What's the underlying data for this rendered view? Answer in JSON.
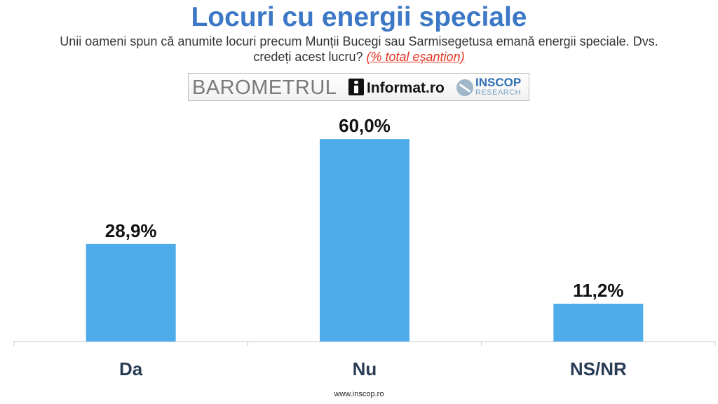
{
  "header": {
    "title": "Locuri cu energii speciale",
    "subtitle": "Unii oameni spun că anumite locuri precum Munții Bucegi sau Sarmisegetusa emană energii speciale. Dvs. credeți acest lucru?",
    "subtitle_note": "(% total eșantion)"
  },
  "banner": {
    "barometru": "BAROMETRUL",
    "informat": "Informat.ro",
    "inscop": "INSCOP",
    "research": "RESEARCH"
  },
  "chart_data": {
    "type": "bar",
    "categories": [
      "Da",
      "Nu",
      "NS/NR"
    ],
    "values": [
      28.9,
      60.0,
      11.2
    ],
    "data_labels": [
      "28,9%",
      "60,0%",
      "11,2%"
    ],
    "ylim": [
      0,
      70
    ],
    "grid": false,
    "bar_color": "#4facea"
  },
  "footer": {
    "url": "www.inscop.ro"
  },
  "colors": {
    "title": "#3c78c6",
    "note": "#e63323",
    "category_label": "#2b3d55"
  }
}
